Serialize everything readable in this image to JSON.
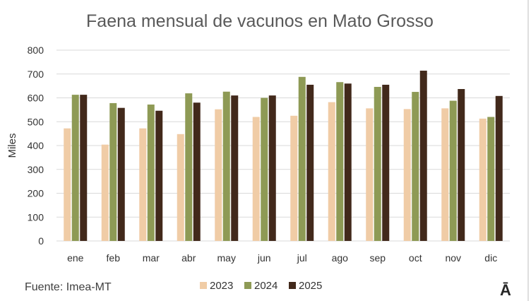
{
  "chart_data": {
    "type": "bar",
    "title": "Faena mensual de vacunos en Mato Grosso",
    "xlabel": "",
    "ylabel": "Miles",
    "ylim": [
      0,
      800
    ],
    "yticks": [
      0,
      100,
      200,
      300,
      400,
      500,
      600,
      700,
      800
    ],
    "grid": true,
    "legend_position": "bottom",
    "categories": [
      "ene",
      "feb",
      "mar",
      "abr",
      "may",
      "jun",
      "jul",
      "ago",
      "sep",
      "oct",
      "nov",
      "dic"
    ],
    "series": [
      {
        "name": "2023",
        "color": "#f0ccA6",
        "values": [
          472,
          404,
          472,
          448,
          552,
          520,
          525,
          582,
          556,
          553,
          556,
          513
        ]
      },
      {
        "name": "2024",
        "color": "#8e9a55",
        "values": [
          613,
          578,
          572,
          619,
          626,
          600,
          688,
          666,
          646,
          625,
          588,
          520
        ]
      },
      {
        "name": "2025",
        "color": "#42291b",
        "values": [
          613,
          558,
          546,
          580,
          610,
          610,
          655,
          660,
          655,
          714,
          637,
          608
        ]
      }
    ]
  },
  "footer": {
    "source": "Fuente: Imea-MT",
    "logo": "Ā"
  }
}
